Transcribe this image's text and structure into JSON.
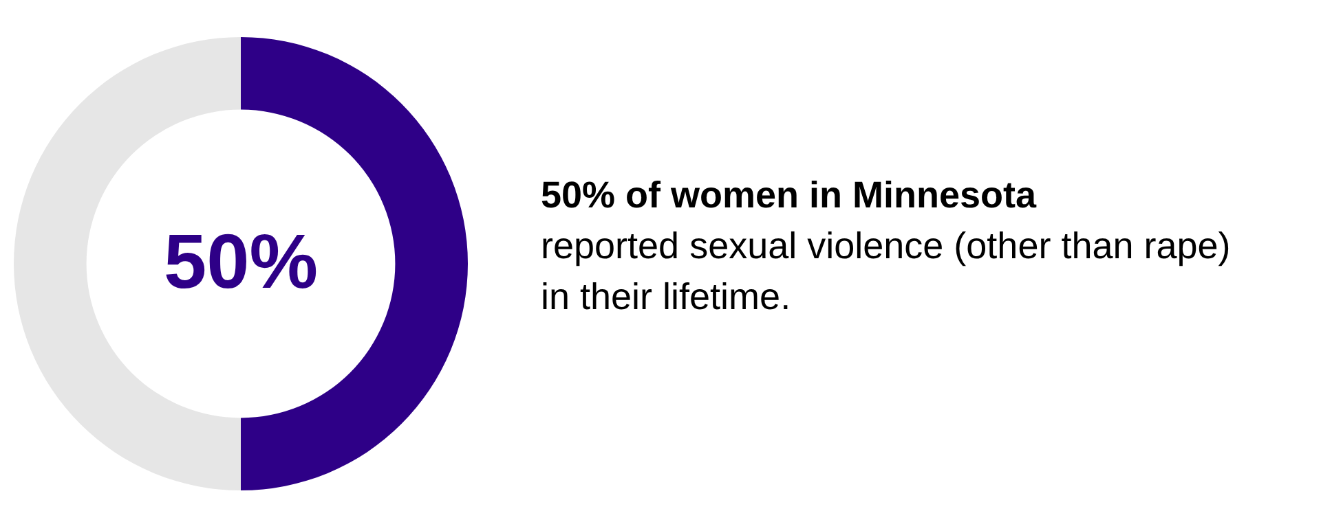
{
  "chart_data": {
    "type": "donut",
    "title": "50% of women in Minnesota",
    "subtitle": "reported sexual violence (other than rape) in their lifetime.",
    "categories": [
      null,
      null
    ],
    "values": [
      50,
      50
    ],
    "colors": [
      "#2e0087",
      "#e6e6e6"
    ],
    "value_labels": [
      "50%",
      null
    ],
    "legend": false
  }
}
